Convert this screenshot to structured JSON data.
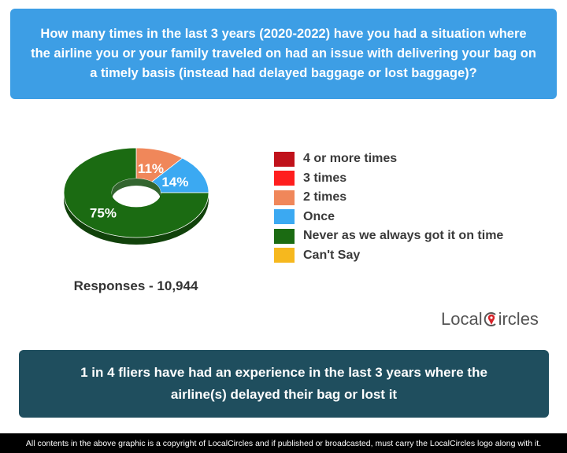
{
  "question": {
    "lines": [
      "How many times in the last 3 years (2020-2022) have you had a situation where",
      "the airline you or your family traveled on had an issue with delivering your bag on",
      "a timely basis (instead had delayed baggage or lost baggage)?"
    ]
  },
  "colors": {
    "question_bg": "#3d9ee5",
    "conclusion_bg": "#1f4e5e",
    "footer_bg": "#000000",
    "logo_accent": "#d6232a"
  },
  "chart_data": {
    "type": "pie",
    "style": "3d-donut",
    "categories": [
      "4 or more times",
      "3 times",
      "2 times",
      "Once",
      "Never as we always got it on time",
      "Can't Say"
    ],
    "values": [
      0,
      0,
      11,
      14,
      75,
      0
    ],
    "colors": [
      "#c0121b",
      "#ff1e1e",
      "#f0875a",
      "#3ba9f2",
      "#1b6b12",
      "#f6b81e"
    ],
    "data_labels": [
      "",
      "",
      "11%",
      "14%",
      "75%",
      ""
    ],
    "legend_position": "right"
  },
  "responses": "Responses - 10,944",
  "logo": {
    "before": "Local",
    "after": "ircles"
  },
  "conclusion": {
    "lines": [
      "1 in 4 fliers have had an experience in the last 3 years where the",
      "airline(s) delayed their bag or lost it"
    ]
  },
  "footer": "All contents in the above graphic is a copyright of LocalCircles and if published or broadcasted, must carry the LocalCircles logo along with it."
}
